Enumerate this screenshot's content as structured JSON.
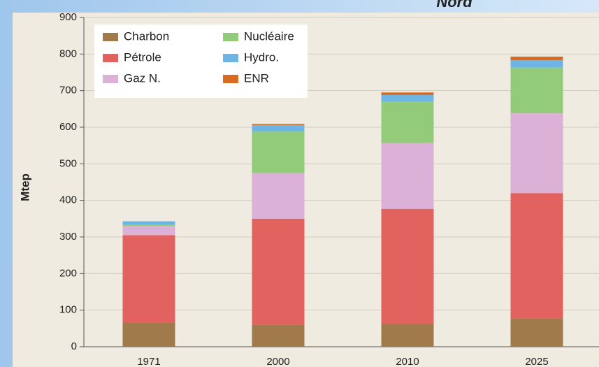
{
  "chart_data": {
    "type": "stacked_bar",
    "annotation": "Nord",
    "ylabel": "Mtep",
    "categories": [
      "1971",
      "2000",
      "2010",
      "2025"
    ],
    "series": [
      {
        "name": "Charbon",
        "color": "#a17a4c",
        "values": [
          65,
          60,
          63,
          78
        ]
      },
      {
        "name": "Pétrole",
        "color": "#e2625f",
        "values": [
          240,
          290,
          314,
          342
        ]
      },
      {
        "name": "Gaz N.",
        "color": "#dcb1d8",
        "values": [
          25,
          125,
          180,
          218
        ]
      },
      {
        "name": "Nucléaire",
        "color": "#92cc7a",
        "values": [
          3,
          113,
          113,
          125
        ]
      },
      {
        "name": "Hydro.",
        "color": "#6db5e5",
        "values": [
          10,
          18,
          18,
          20
        ]
      },
      {
        "name": "ENR",
        "color": "#d66b22",
        "values": [
          0,
          3,
          7,
          10
        ]
      }
    ],
    "ylim": [
      0,
      900
    ],
    "yticks": [
      0,
      100,
      200,
      300,
      400,
      500,
      600,
      700,
      800,
      900
    ],
    "grid": true
  }
}
